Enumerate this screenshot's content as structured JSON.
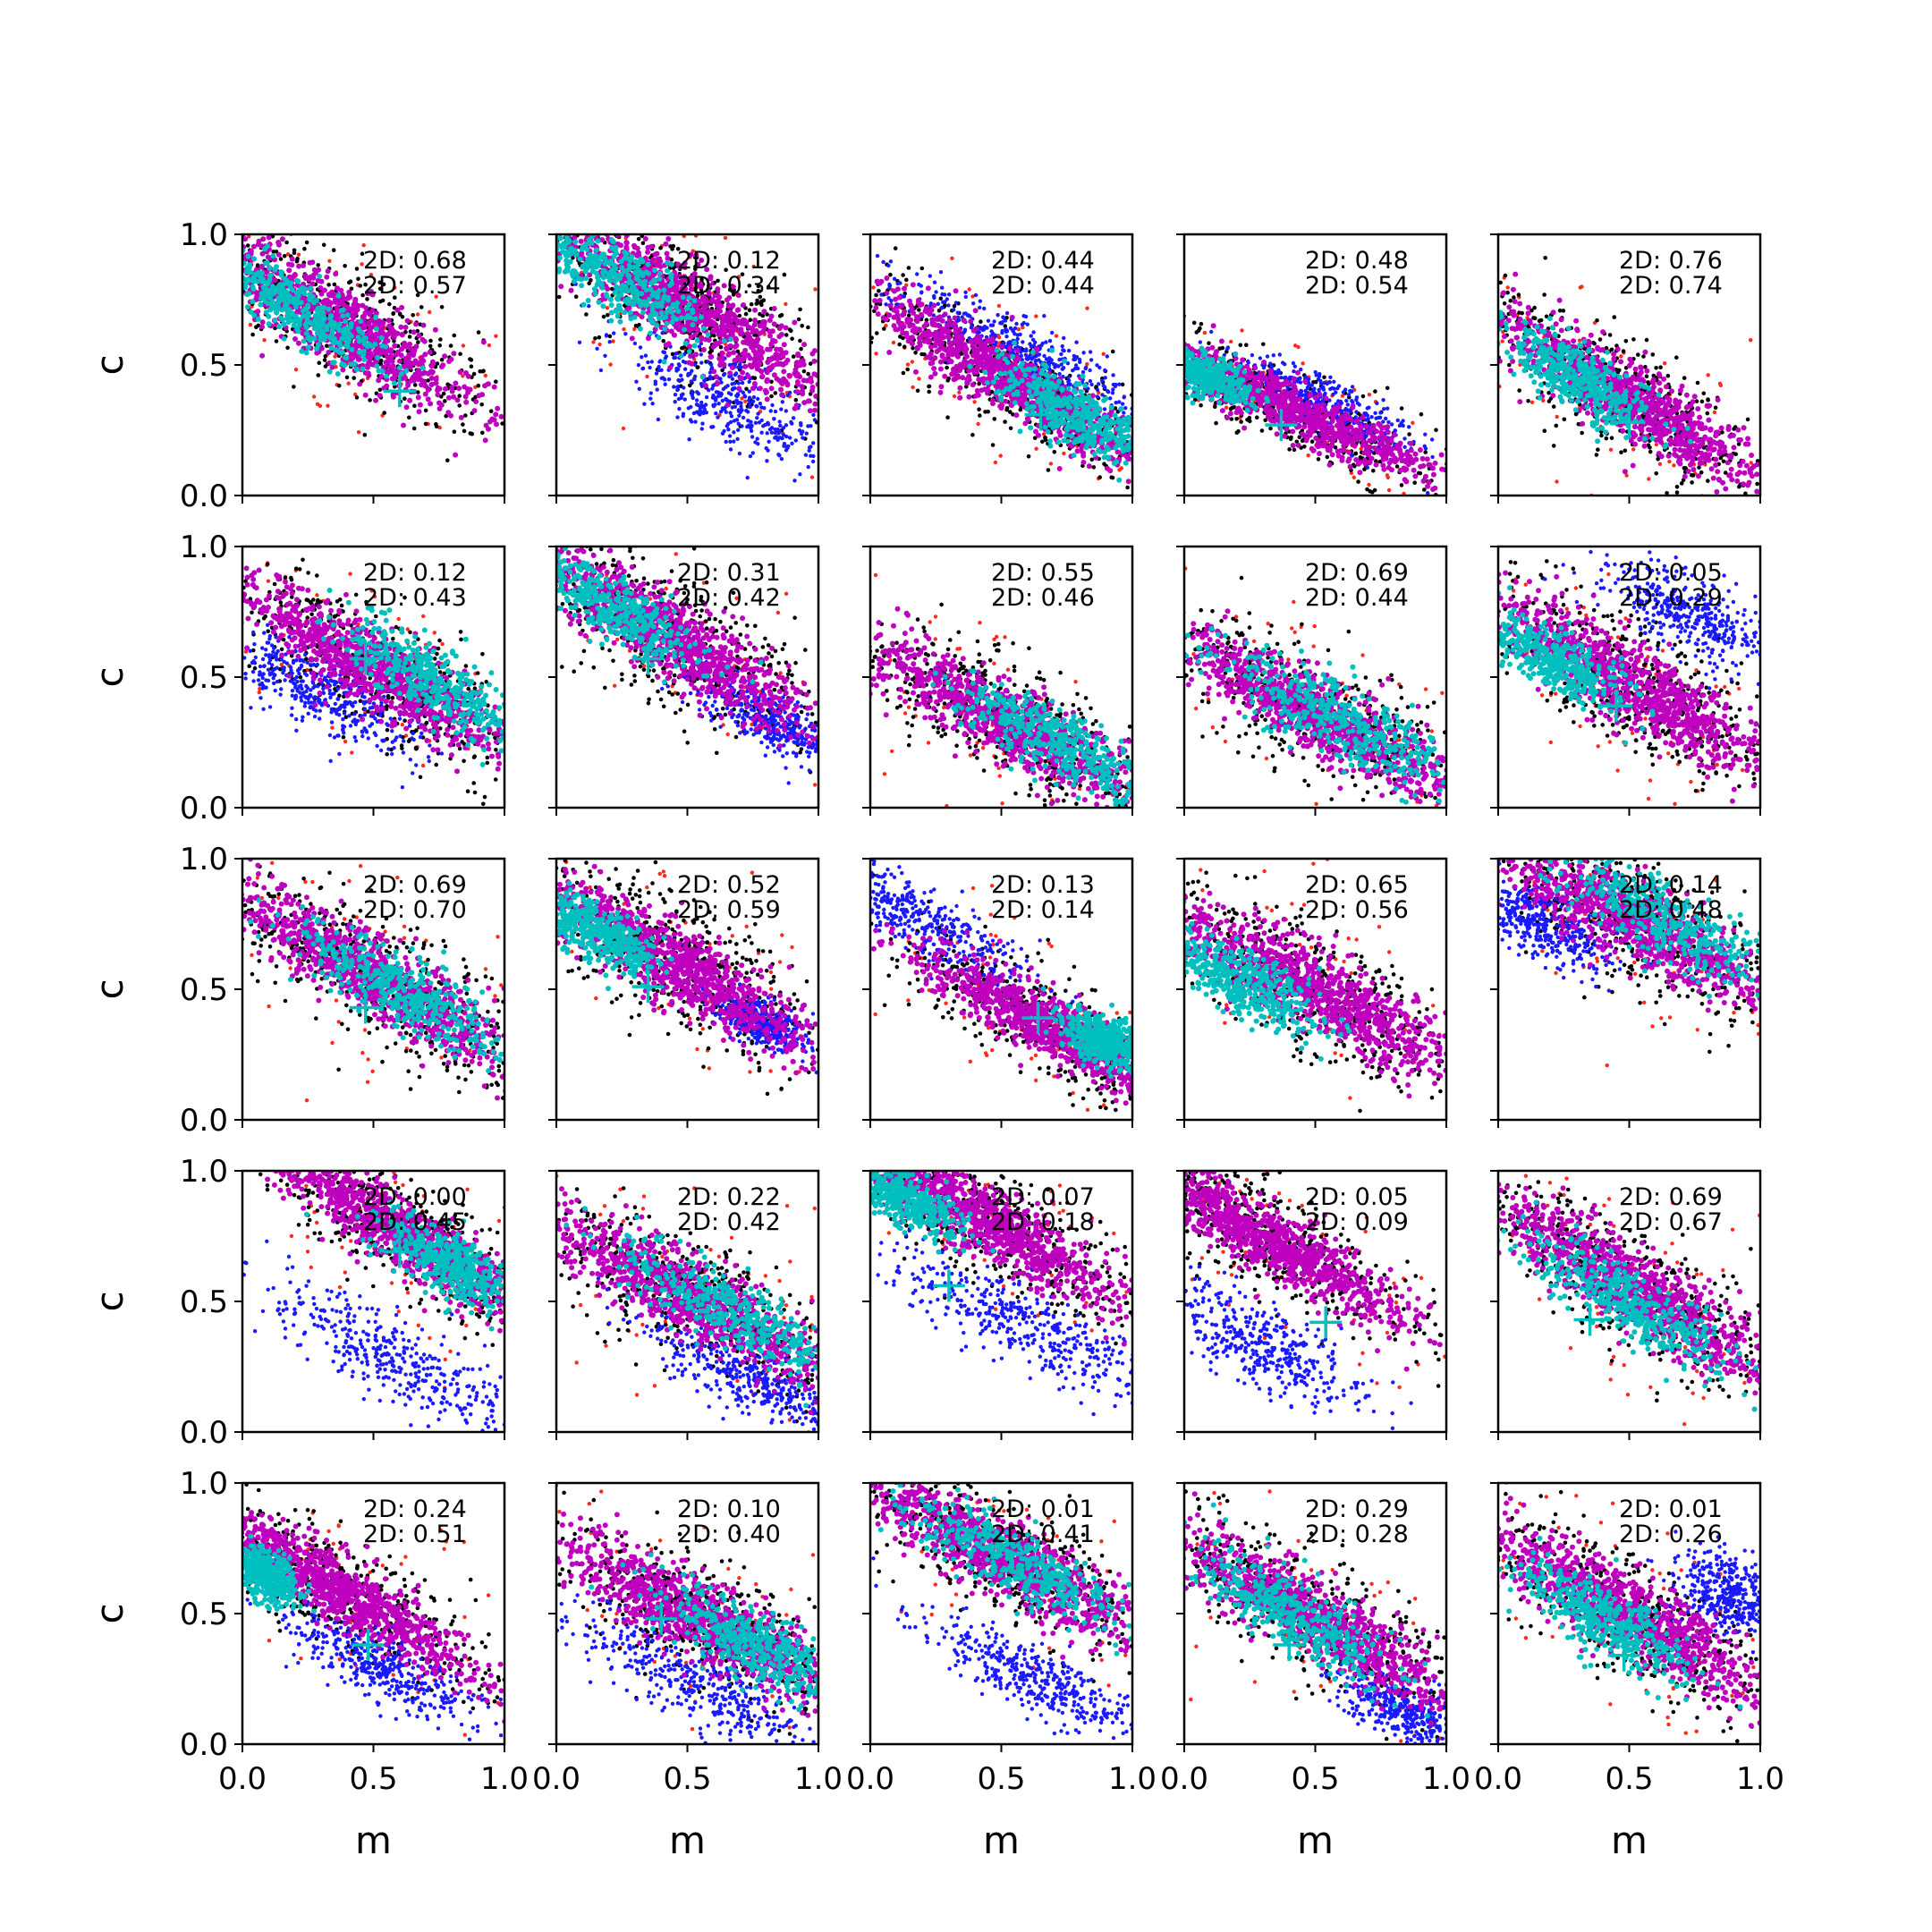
{
  "figure": {
    "grid": {
      "rows": 5,
      "cols": 5
    },
    "colors": {
      "red": "#ff2a1a",
      "black": "#000000",
      "blue": "#1a1aff",
      "magenta": "#bf00bf",
      "cyan": "#00bfbf",
      "marker": "#00bfbf"
    }
  },
  "chart_data": {
    "type": "scatter",
    "xlabel": "m",
    "ylabel": "c",
    "xlim": [
      0,
      1
    ],
    "ylim": [
      0,
      1
    ],
    "xticks": [
      "0.0",
      "0.5",
      "1.0"
    ],
    "yticks": [
      "0.0",
      "0.5",
      "1.0"
    ],
    "series_colors": [
      "red",
      "black",
      "blue",
      "magenta",
      "cyan"
    ],
    "panels": [
      {
        "annotations": [
          "2D: 0.68",
          "2D: 0.57"
        ],
        "marker": [
          0.6,
          0.4
        ],
        "main": {
          "cx": 0.35,
          "cy": 0.67,
          "slope": -0.62,
          "sep": 0.24
        },
        "cyan": {
          "cx": 0.2,
          "cy": 0.72,
          "len": 0.25,
          "w": 0.07
        },
        "blue": null
      },
      {
        "annotations": [
          "2D: 0.12",
          "2D: 0.34"
        ],
        "marker": null,
        "main": {
          "cx": 0.5,
          "cy": 0.72,
          "slope": -0.62,
          "sep": 0.24
        },
        "cyan": {
          "cx": 0.22,
          "cy": 0.84,
          "len": 0.28,
          "w": 0.08
        },
        "blue": {
          "cx": 0.65,
          "cy": 0.36,
          "slope": -0.55,
          "len": 0.3,
          "w": 0.07
        }
      },
      {
        "annotations": [
          "2D: 0.44",
          "2D: 0.44"
        ],
        "marker": [
          0.65,
          0.31
        ],
        "main": {
          "cx": 0.55,
          "cy": 0.43,
          "slope": -0.6,
          "sep": 0.2
        },
        "cyan": {
          "cx": 0.78,
          "cy": 0.31,
          "len": 0.22,
          "w": 0.07
        },
        "blue": {
          "cx": 0.55,
          "cy": 0.58,
          "slope": -0.5,
          "len": 0.35,
          "w": 0.05
        }
      },
      {
        "annotations": [
          "2D: 0.48",
          "2D: 0.54"
        ],
        "marker": [
          0.37,
          0.27
        ],
        "main": {
          "cx": 0.38,
          "cy": 0.34,
          "slope": -0.45,
          "sep": 0.16
        },
        "cyan": {
          "cx": 0.08,
          "cy": 0.46,
          "len": 0.12,
          "w": 0.05
        },
        "blue": {
          "cx": 0.55,
          "cy": 0.34,
          "slope": -0.5,
          "len": 0.25,
          "w": 0.05
        }
      },
      {
        "annotations": [
          "2D: 0.76",
          "2D: 0.74"
        ],
        "marker": [
          0.5,
          0.28
        ],
        "main": {
          "cx": 0.5,
          "cy": 0.37,
          "slope": -0.62,
          "sep": 0.22
        },
        "cyan": {
          "cx": 0.3,
          "cy": 0.45,
          "len": 0.22,
          "w": 0.07
        },
        "blue": null
      },
      {
        "annotations": [
          "2D: 0.12",
          "2D: 0.43"
        ],
        "marker": [
          0.47,
          0.57
        ],
        "main": {
          "cx": 0.5,
          "cy": 0.53,
          "slope": -0.58,
          "sep": 0.24
        },
        "cyan": {
          "cx": 0.75,
          "cy": 0.47,
          "len": 0.3,
          "w": 0.08
        },
        "blue": {
          "cx": 0.28,
          "cy": 0.45,
          "slope": -0.5,
          "len": 0.28,
          "w": 0.07
        }
      },
      {
        "annotations": [
          "2D: 0.31",
          "2D: 0.42"
        ],
        "marker": [
          0.35,
          0.57
        ],
        "main": {
          "cx": 0.45,
          "cy": 0.65,
          "slope": -0.62,
          "sep": 0.24
        },
        "cyan": {
          "cx": 0.2,
          "cy": 0.77,
          "len": 0.24,
          "w": 0.07
        },
        "blue": {
          "cx": 0.82,
          "cy": 0.33,
          "slope": -0.5,
          "len": 0.2,
          "w": 0.05
        }
      },
      {
        "annotations": [
          "2D: 0.55",
          "2D: 0.46"
        ],
        "marker": null,
        "main": {
          "cx": 0.5,
          "cy": 0.34,
          "slope": -0.55,
          "sep": 0.24
        },
        "cyan": {
          "cx": 0.72,
          "cy": 0.24,
          "len": 0.3,
          "w": 0.08
        },
        "blue": null
      },
      {
        "annotations": [
          "2D: 0.69",
          "2D: 0.44"
        ],
        "marker": null,
        "main": {
          "cx": 0.5,
          "cy": 0.36,
          "slope": -0.55,
          "sep": 0.24
        },
        "cyan": {
          "cx": 0.6,
          "cy": 0.33,
          "len": 0.32,
          "w": 0.09
        },
        "blue": null
      },
      {
        "annotations": [
          "2D: 0.05",
          "2D: 0.29"
        ],
        "marker": [
          0.45,
          0.39
        ],
        "main": {
          "cx": 0.5,
          "cy": 0.48,
          "slope": -0.6,
          "sep": 0.24
        },
        "cyan": {
          "cx": 0.2,
          "cy": 0.57,
          "len": 0.2,
          "w": 0.07
        },
        "blue": {
          "cx": 0.75,
          "cy": 0.73,
          "slope": -0.5,
          "len": 0.25,
          "w": 0.07
        }
      },
      {
        "annotations": [
          "2D: 0.69",
          "2D: 0.70"
        ],
        "marker": [
          0.47,
          0.43
        ],
        "main": {
          "cx": 0.5,
          "cy": 0.55,
          "slope": -0.6,
          "sep": 0.24
        },
        "cyan": {
          "cx": 0.62,
          "cy": 0.48,
          "len": 0.3,
          "w": 0.08
        },
        "blue": null
      },
      {
        "annotations": [
          "2D: 0.52",
          "2D: 0.59"
        ],
        "marker": [
          0.35,
          0.51
        ],
        "main": {
          "cx": 0.45,
          "cy": 0.6,
          "slope": -0.6,
          "sep": 0.24
        },
        "cyan": {
          "cx": 0.15,
          "cy": 0.72,
          "len": 0.18,
          "w": 0.07
        },
        "blue": {
          "cx": 0.78,
          "cy": 0.37,
          "slope": -0.5,
          "len": 0.12,
          "w": 0.04
        }
      },
      {
        "annotations": [
          "2D: 0.13",
          "2D: 0.14"
        ],
        "marker": [
          0.64,
          0.39
        ],
        "main": {
          "cx": 0.7,
          "cy": 0.35,
          "slope": -0.55,
          "sep": 0.2
        },
        "cyan": {
          "cx": 0.9,
          "cy": 0.3,
          "len": 0.12,
          "w": 0.06
        },
        "blue": {
          "cx": 0.18,
          "cy": 0.78,
          "slope": -0.55,
          "len": 0.3,
          "w": 0.06
        }
      },
      {
        "annotations": [
          "2D: 0.65",
          "2D: 0.56"
        ],
        "marker": [
          0.38,
          0.42
        ],
        "main": {
          "cx": 0.5,
          "cy": 0.5,
          "slope": -0.55,
          "sep": 0.24
        },
        "cyan": {
          "cx": 0.22,
          "cy": 0.53,
          "len": 0.22,
          "w": 0.08
        },
        "blue": null
      },
      {
        "annotations": [
          "2D: 0.14",
          "2D: 0.48"
        ],
        "marker": null,
        "main": {
          "cx": 0.5,
          "cy": 0.77,
          "slope": -0.55,
          "sep": 0.24
        },
        "cyan": {
          "cx": 0.65,
          "cy": 0.75,
          "len": 0.3,
          "w": 0.08
        },
        "blue": {
          "cx": 0.15,
          "cy": 0.75,
          "slope": -0.45,
          "len": 0.2,
          "w": 0.06
        }
      },
      {
        "annotations": [
          "2D: 0.00",
          "2D: 0.45"
        ],
        "marker": [
          0.6,
          0.69
        ],
        "main": {
          "cx": 0.62,
          "cy": 0.75,
          "slope": -0.62,
          "sep": 0.22
        },
        "cyan": {
          "cx": 0.8,
          "cy": 0.64,
          "len": 0.2,
          "w": 0.07
        },
        "blue": {
          "cx": 0.6,
          "cy": 0.27,
          "slope": -0.55,
          "len": 0.38,
          "w": 0.07
        }
      },
      {
        "annotations": [
          "2D: 0.22",
          "2D: 0.42"
        ],
        "marker": null,
        "main": {
          "cx": 0.5,
          "cy": 0.52,
          "slope": -0.55,
          "sep": 0.24
        },
        "cyan": {
          "cx": 0.65,
          "cy": 0.47,
          "len": 0.32,
          "w": 0.08
        },
        "blue": {
          "cx": 0.75,
          "cy": 0.2,
          "slope": -0.5,
          "len": 0.3,
          "w": 0.06
        }
      },
      {
        "annotations": [
          "2D: 0.07",
          "2D: 0.18"
        ],
        "marker": [
          0.3,
          0.56
        ],
        "main": {
          "cx": 0.42,
          "cy": 0.82,
          "slope": -0.6,
          "sep": 0.22
        },
        "cyan": {
          "cx": 0.12,
          "cy": 0.9,
          "len": 0.18,
          "w": 0.06
        },
        "blue": {
          "cx": 0.6,
          "cy": 0.4,
          "slope": -0.5,
          "len": 0.35,
          "w": 0.07
        }
      },
      {
        "annotations": [
          "2D: 0.05",
          "2D: 0.09"
        ],
        "marker": [
          0.54,
          0.42
        ],
        "main": {
          "cx": 0.3,
          "cy": 0.75,
          "slope": -0.6,
          "sep": 0.2
        },
        "cyan": null,
        "blue": {
          "cx": 0.32,
          "cy": 0.32,
          "slope": -0.55,
          "len": 0.3,
          "w": 0.07
        }
      },
      {
        "annotations": [
          "2D: 0.69",
          "2D: 0.67"
        ],
        "marker": [
          0.35,
          0.43
        ],
        "main": {
          "cx": 0.5,
          "cy": 0.56,
          "slope": -0.62,
          "sep": 0.24
        },
        "cyan": {
          "cx": 0.5,
          "cy": 0.49,
          "len": 0.3,
          "w": 0.08
        },
        "blue": null
      },
      {
        "annotations": [
          "2D: 0.24",
          "2D: 0.51"
        ],
        "marker": [
          0.48,
          0.38
        ],
        "main": {
          "cx": 0.35,
          "cy": 0.6,
          "slope": -0.62,
          "sep": 0.2
        },
        "cyan": {
          "cx": 0.08,
          "cy": 0.65,
          "len": 0.1,
          "w": 0.06
        },
        "blue": {
          "cx": 0.52,
          "cy": 0.3,
          "slope": -0.5,
          "len": 0.25,
          "w": 0.06
        }
      },
      {
        "annotations": [
          "2D: 0.10",
          "2D: 0.40"
        ],
        "marker": [
          0.4,
          0.48
        ],
        "main": {
          "cx": 0.55,
          "cy": 0.48,
          "slope": -0.55,
          "sep": 0.24
        },
        "cyan": {
          "cx": 0.75,
          "cy": 0.39,
          "len": 0.26,
          "w": 0.08
        },
        "blue": {
          "cx": 0.55,
          "cy": 0.22,
          "slope": -0.5,
          "len": 0.35,
          "w": 0.07
        }
      },
      {
        "annotations": [
          "2D: 0.01",
          "2D: 0.41"
        ],
        "marker": null,
        "main": {
          "cx": 0.5,
          "cy": 0.72,
          "slope": -0.55,
          "sep": 0.24
        },
        "cyan": {
          "cx": 0.55,
          "cy": 0.7,
          "len": 0.3,
          "w": 0.08
        },
        "blue": {
          "cx": 0.65,
          "cy": 0.24,
          "slope": -0.5,
          "len": 0.32,
          "w": 0.06
        }
      },
      {
        "annotations": [
          "2D: 0.29",
          "2D: 0.28"
        ],
        "marker": [
          0.4,
          0.38
        ],
        "main": {
          "cx": 0.5,
          "cy": 0.48,
          "slope": -0.6,
          "sep": 0.24
        },
        "cyan": {
          "cx": 0.4,
          "cy": 0.5,
          "len": 0.3,
          "w": 0.08
        },
        "blue": {
          "cx": 0.85,
          "cy": 0.12,
          "slope": -0.5,
          "len": 0.18,
          "w": 0.05
        }
      },
      {
        "annotations": [
          "2D: 0.01",
          "2D: 0.26"
        ],
        "marker": [
          0.48,
          0.34
        ],
        "main": {
          "cx": 0.5,
          "cy": 0.5,
          "slope": -0.6,
          "sep": 0.24
        },
        "cyan": {
          "cx": 0.4,
          "cy": 0.48,
          "len": 0.25,
          "w": 0.08
        },
        "blue": {
          "cx": 0.88,
          "cy": 0.58,
          "slope": -0.5,
          "len": 0.15,
          "w": 0.07
        }
      }
    ]
  }
}
